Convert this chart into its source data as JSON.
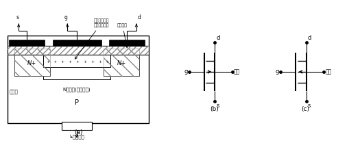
{
  "fig_width": 5.25,
  "fig_height": 2.09,
  "dpi": 100,
  "bg_color": "#ffffff",
  "line_color": "#000000",
  "label_a": "(a)",
  "label_b": "(b)",
  "label_c": "(c)",
  "text_n_plus": "N+",
  "text_n_channel": "N型沟道(初始沟道)",
  "text_depletion": "耗尽层",
  "text_oxide": "二氧化硅",
  "text_insulator_line1": "掺杂后具有正",
  "text_insulator_line2": "离子的绝缘层",
  "text_substrate_lead": "↳村底引线",
  "text_s": "s",
  "text_g": "g",
  "text_d": "d",
  "text_substrate": "村底",
  "text_p": "P"
}
